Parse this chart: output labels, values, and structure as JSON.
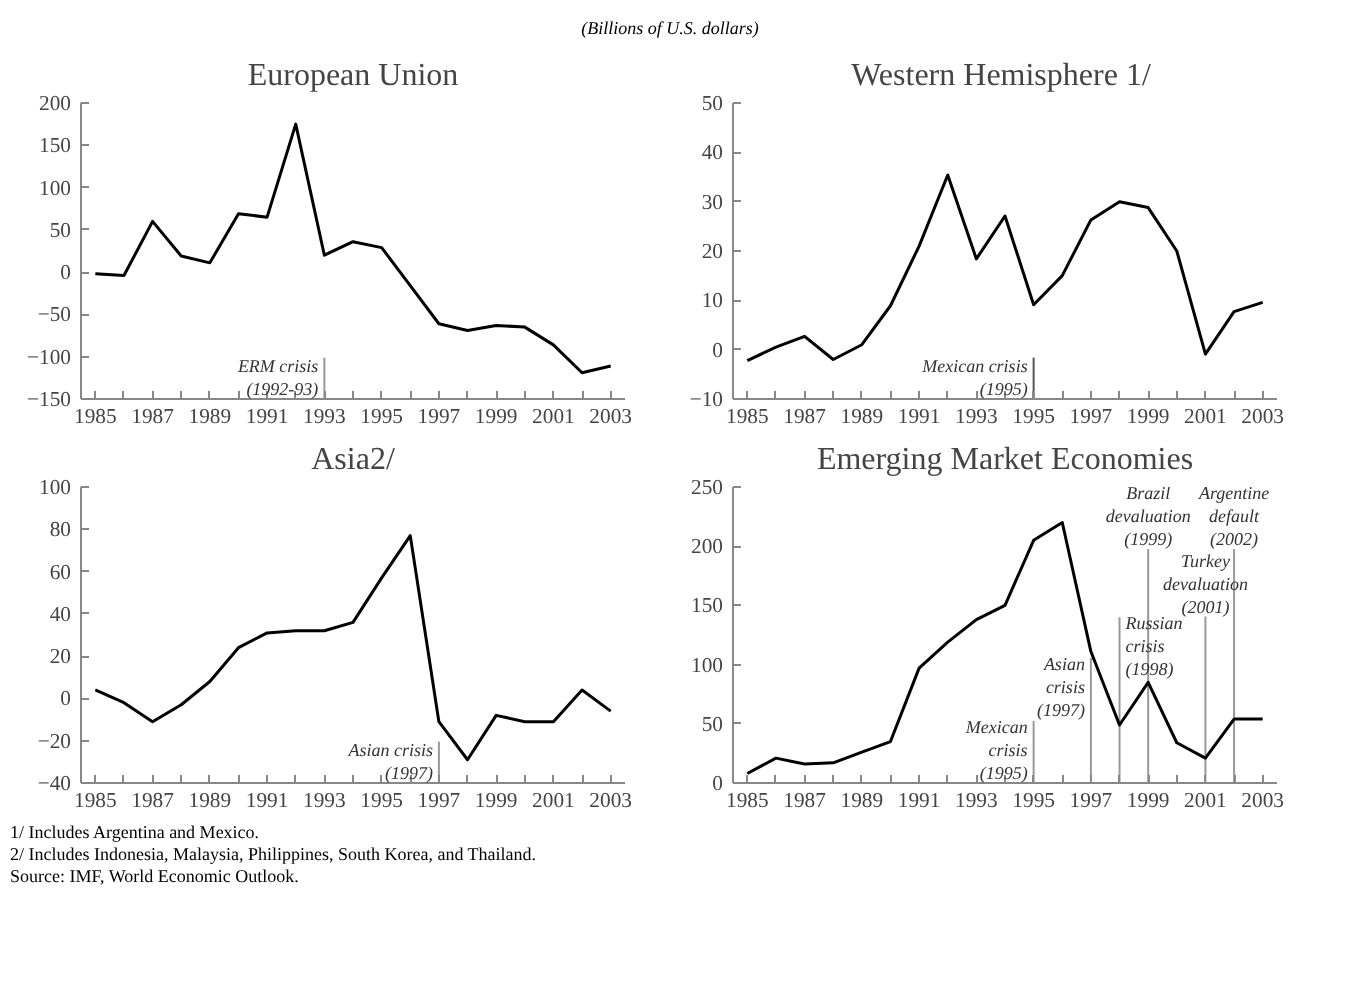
{
  "chart_data": [
    {
      "type": "line",
      "title": "European Union",
      "subtitle": "(Billions of U.S. dollars)",
      "x": [
        1985,
        1986,
        1987,
        1988,
        1989,
        1990,
        1991,
        1992,
        1993,
        1994,
        1995,
        1996,
        1997,
        1998,
        1999,
        2000,
        2001,
        2002,
        2003
      ],
      "series": [
        {
          "color": "#000000",
          "values": [
            -2,
            -4,
            60,
            19,
            11,
            69,
            65,
            175,
            20,
            36,
            29,
            -16,
            -61,
            -69,
            -63,
            -65,
            -86,
            -119,
            -111
          ]
        }
      ],
      "xlim": [
        1984.5,
        2003.5
      ],
      "xticks": [
        1985,
        1987,
        1989,
        1991,
        1993,
        1995,
        1997,
        1999,
        2001,
        2003
      ],
      "ylim": [
        -150,
        200
      ],
      "yticks": [
        -150,
        -100,
        -50,
        0,
        50,
        100,
        150,
        200
      ],
      "ref_lines": [
        {
          "axis": "x",
          "value": 1993,
          "color": "#999999",
          "label": "ERM crisis\n(1992-93)"
        }
      ],
      "grid": false,
      "marker": "none",
      "line_style": "solid"
    },
    {
      "type": "line",
      "title": "Western Hemisphere  1/",
      "x": [
        1985,
        1986,
        1987,
        1988,
        1989,
        1990,
        1991,
        1992,
        1993,
        1994,
        1995,
        1996,
        1997,
        1998,
        1999,
        2000,
        2001,
        2002,
        2003
      ],
      "series": [
        {
          "color": "#000000",
          "values": [
            -2.2,
            0.5,
            2.7,
            -2,
            1,
            8.9,
            21,
            35.4,
            18.4,
            27.1,
            9.1,
            15,
            26.3,
            30,
            28.8,
            20,
            -0.9,
            7.7,
            9.6
          ]
        }
      ],
      "xlim": [
        1984.5,
        2003.5
      ],
      "xticks": [
        1985,
        1987,
        1989,
        1991,
        1993,
        1995,
        1997,
        1999,
        2001,
        2003
      ],
      "ylim": [
        -10,
        50
      ],
      "yticks": [
        -10,
        0,
        10,
        20,
        30,
        40,
        50
      ],
      "ref_lines": [
        {
          "axis": "x",
          "value": 1995,
          "color": "#555555",
          "label": "Mexican crisis\n(1995)"
        }
      ],
      "grid": false,
      "marker": "none",
      "line_style": "solid"
    },
    {
      "type": "line",
      "title": "Asia2/",
      "x": [
        1985,
        1986,
        1987,
        1988,
        1989,
        1990,
        1991,
        1992,
        1993,
        1994,
        1995,
        1996,
        1997,
        1998,
        1999,
        2000,
        2001,
        2002,
        2003
      ],
      "series": [
        {
          "color": "#000000",
          "values": [
            4,
            -2,
            -11,
            -3,
            8,
            24,
            31,
            32,
            32,
            36,
            57,
            77,
            -11,
            -29,
            -8,
            -11,
            -11,
            4,
            -6
          ]
        }
      ],
      "xlim": [
        1984.5,
        2003.5
      ],
      "xticks": [
        1985,
        1987,
        1989,
        1991,
        1993,
        1995,
        1997,
        1999,
        2001,
        2003
      ],
      "ylim": [
        -40,
        100
      ],
      "yticks": [
        -40,
        -20,
        0,
        20,
        40,
        60,
        80,
        100
      ],
      "ref_lines": [
        {
          "axis": "x",
          "value": 1997,
          "color": "#999999",
          "label": "Asian crisis\n(1997)"
        }
      ],
      "grid": false,
      "marker": "none",
      "line_style": "solid"
    },
    {
      "type": "line",
      "title": "Emerging Market Economies",
      "x": [
        1985,
        1986,
        1987,
        1988,
        1989,
        1990,
        1991,
        1992,
        1993,
        1994,
        1995,
        1996,
        1997,
        1998,
        1999,
        2000,
        2001,
        2002,
        2003
      ],
      "series": [
        {
          "color": "#000000",
          "values": [
            8,
            21,
            16,
            17,
            26,
            35,
            97,
            119,
            138,
            150,
            205,
            220,
            111,
            49,
            85,
            34,
            21,
            54,
            54
          ]
        }
      ],
      "xlim": [
        1984.5,
        2003.5
      ],
      "xticks": [
        1985,
        1987,
        1989,
        1991,
        1993,
        1995,
        1997,
        1999,
        2001,
        2003
      ],
      "ylim": [
        0,
        250
      ],
      "yticks": [
        0,
        50,
        100,
        150,
        200,
        250
      ],
      "ref_lines": [
        {
          "axis": "x",
          "value": 1995,
          "color": "#999999",
          "label": "Mexican\ncrisis\n(1995)"
        },
        {
          "axis": "x",
          "value": 1997,
          "color": "#999999",
          "label": "Asian\ncrisis\n(1997)"
        },
        {
          "axis": "x",
          "value": 1998,
          "color": "#999999",
          "label": "Russian\ncrisis\n(1998)"
        },
        {
          "axis": "x",
          "value": 1999,
          "color": "#999999",
          "label": "Brazil\ndevaluation\n(1999)"
        },
        {
          "axis": "x",
          "value": 2001,
          "color": "#999999",
          "label": "Turkey\ndevaluation\n(2001)"
        },
        {
          "axis": "x",
          "value": 2002,
          "color": "#999999",
          "label": "Argentine\ndefault\n(2002)"
        }
      ],
      "annotations": [
        "1/  Includes Argentina and Mexico.",
        "2/  Includes Indonesia, Malaysia, Philippines, South Korea, and Thailand.",
        "Source: IMF, World Economic Outlook."
      ],
      "grid": false,
      "marker": "none",
      "line_style": "solid"
    }
  ]
}
